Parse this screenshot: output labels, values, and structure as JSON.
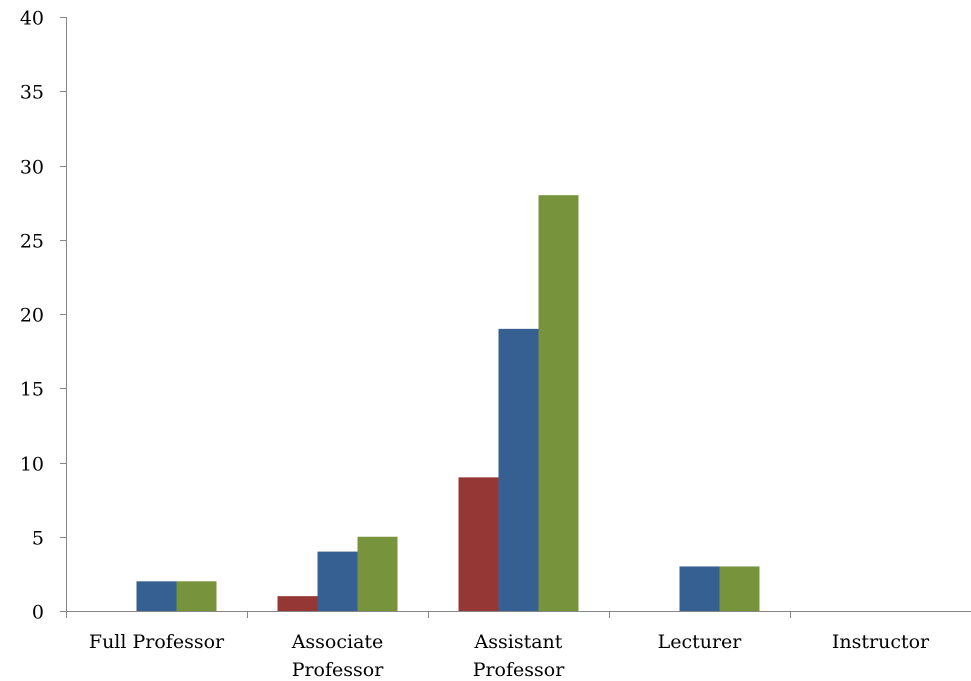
{
  "chart_data": {
    "type": "bar",
    "title": "",
    "xlabel": "",
    "ylabel": "",
    "ylim": [
      0,
      40
    ],
    "yticks": [
      0,
      5,
      10,
      15,
      20,
      25,
      30,
      35,
      40
    ],
    "grid": false,
    "legend": "none",
    "categories": [
      [
        "Full Professor"
      ],
      [
        "Associate",
        "Professor"
      ],
      [
        "Assistant",
        "Professor"
      ],
      [
        "Lecturer"
      ],
      [
        "Instructor"
      ]
    ],
    "series": [
      {
        "color": "#953735",
        "values": [
          0,
          1,
          9,
          0,
          0
        ]
      },
      {
        "color": "#376092",
        "values": [
          2,
          4,
          19,
          3,
          0
        ]
      },
      {
        "color": "#77933c",
        "values": [
          2,
          5,
          28,
          3,
          0
        ]
      }
    ]
  }
}
